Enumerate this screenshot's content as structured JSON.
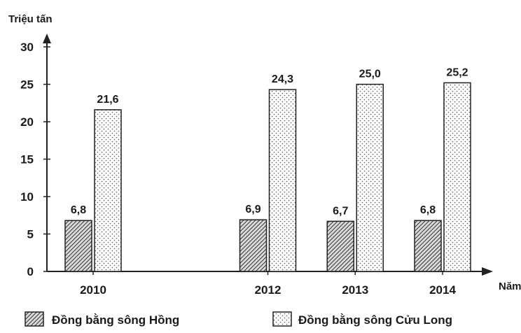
{
  "chart_data": {
    "type": "bar",
    "ylabel": "Triệu tấn",
    "xlabel": "Năm",
    "ylim": [
      0,
      30
    ],
    "yticks": [
      0,
      5,
      10,
      15,
      20,
      25,
      30
    ],
    "categories": [
      "2010",
      "2012",
      "2013",
      "2014"
    ],
    "x": [
      2010,
      2012,
      2013,
      2014
    ],
    "series": [
      {
        "name": "Đồng bằng sông Hồng",
        "values": [
          6.8,
          6.9,
          6.7,
          6.8
        ],
        "labels": [
          "6,8",
          "6,9",
          "6,7",
          "6,8"
        ],
        "pattern": "hatch"
      },
      {
        "name": "Đồng bằng sông Cửu Long",
        "values": [
          21.6,
          24.3,
          25.0,
          25.2
        ],
        "labels": [
          "21,6",
          "24,3",
          "25,0",
          "25,2"
        ],
        "pattern": "dots"
      }
    ],
    "legend_position": "bottom",
    "grid": false
  }
}
